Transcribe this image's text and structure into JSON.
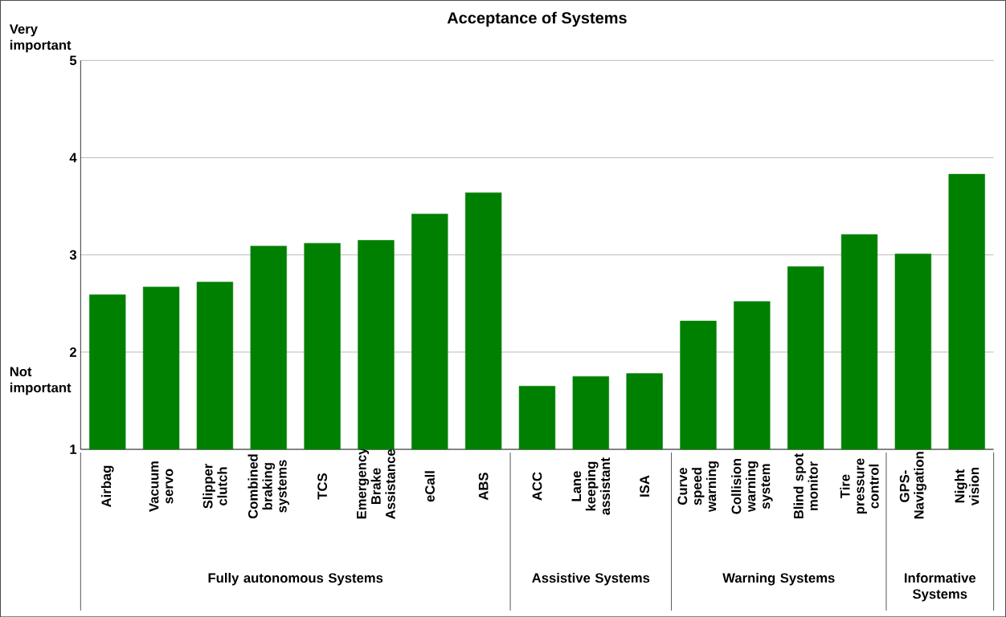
{
  "chart_data": {
    "type": "bar",
    "title": "Acceptance of Systems",
    "categories": [
      "Airbag",
      "Vacuum servo",
      "Slipper clutch",
      "Combined braking systems",
      "TCS",
      "Emergency Brake Assistance",
      "eCall",
      "ABS",
      "ACC",
      "Lane keeping assistant",
      "ISA",
      "Curve speed warning",
      "Collision warning system",
      "Blind spot monitor",
      "Tire pressure control",
      "GPS-Navigation",
      "Night vision"
    ],
    "values": [
      2.59,
      2.67,
      2.72,
      3.09,
      3.12,
      3.15,
      3.42,
      3.64,
      1.65,
      1.75,
      1.78,
      2.32,
      2.52,
      2.88,
      3.21,
      3.01,
      3.83
    ],
    "color": "#008000",
    "ylim": [
      1,
      5
    ],
    "yticks": [
      1,
      2,
      3,
      4,
      5
    ],
    "grid": "y",
    "annotations": [
      "Very important",
      "Not important",
      "Fully autonomous Systems",
      "Assistive Systems",
      "Warning Systems",
      "Informative Systems"
    ]
  }
}
